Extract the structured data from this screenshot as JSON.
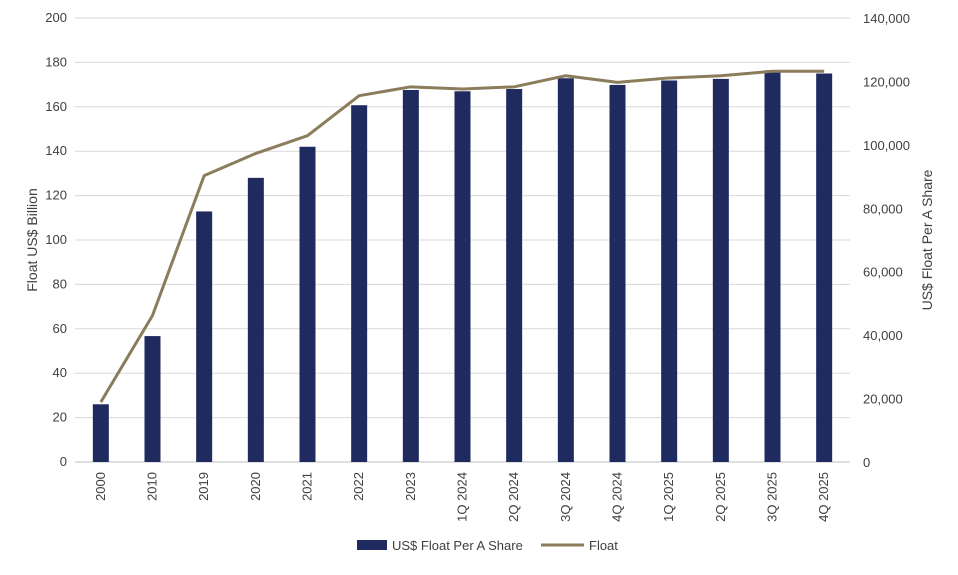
{
  "chart_data": {
    "type": "bar",
    "categories": [
      "2000",
      "2010",
      "2019",
      "2020",
      "2021",
      "2022",
      "2023",
      "1Q 2024",
      "2Q 2024",
      "3Q 2024",
      "4Q 2024",
      "1Q 2025",
      "2Q 2025",
      "3Q 2025",
      "4Q 2025"
    ],
    "series": [
      {
        "name": "US$ Float Per A Share",
        "type": "bar",
        "axis": "right",
        "color": "#1f2a5e",
        "values": [
          18200,
          39700,
          79000,
          89600,
          99400,
          112500,
          117300,
          116900,
          117600,
          121000,
          118900,
          120300,
          120800,
          123500,
          122500
        ]
      },
      {
        "name": "Float",
        "type": "line",
        "axis": "left",
        "color": "#8b7d5b",
        "values": [
          27,
          66,
          129,
          139,
          147,
          165,
          169,
          168,
          169,
          174,
          171,
          173,
          174,
          176,
          176
        ]
      }
    ],
    "ylabel_left": "Float US$ Billion",
    "ylabel_right": "US$ Float Per A Share",
    "ylim_left": [
      0,
      200
    ],
    "ylim_right": [
      0,
      140000
    ],
    "left_ticks": [
      "0",
      "20",
      "40",
      "60",
      "80",
      "100",
      "120",
      "140",
      "160",
      "180",
      "200"
    ],
    "right_ticks": [
      "0",
      "20,000",
      "40,000",
      "60,000",
      "80,000",
      "100,000",
      "120,000",
      "140,000"
    ],
    "grid": "horizontal",
    "legend_position": "bottom"
  }
}
